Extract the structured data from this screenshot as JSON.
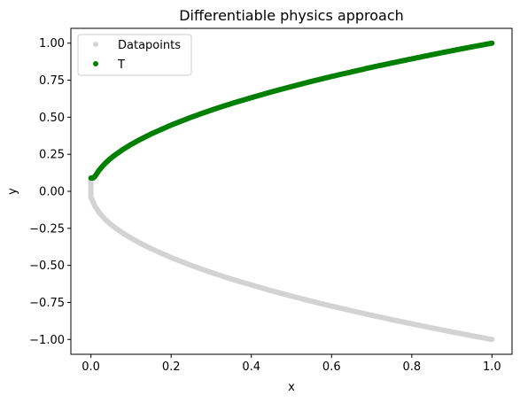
{
  "chart_data": {
    "type": "scatter",
    "title": "Differentiable physics approach",
    "xlabel": "x",
    "ylabel": "y",
    "xlim": [
      -0.05,
      1.05
    ],
    "ylim": [
      -1.1,
      1.1
    ],
    "xticks": [
      0.0,
      0.2,
      0.4,
      0.6,
      0.8,
      1.0
    ],
    "xtick_labels": [
      "0.0",
      "0.2",
      "0.4",
      "0.6",
      "0.8",
      "1.0"
    ],
    "yticks": [
      -1.0,
      -0.75,
      -0.5,
      -0.25,
      0.0,
      0.25,
      0.5,
      0.75,
      1.0
    ],
    "ytick_labels": [
      "−1.00",
      "−0.75",
      "−0.50",
      "−0.25",
      "0.00",
      "0.25",
      "0.50",
      "0.75",
      "1.00"
    ],
    "grid": false,
    "legend_position": "top-left",
    "series": [
      {
        "name": "Datapoints",
        "color": "#d3d3d3",
        "marker": "circle",
        "points": [
          [
            0.0,
            0.08
          ],
          [
            0.0,
            0.05
          ],
          [
            0.0,
            0.0
          ],
          [
            0.0,
            -0.04
          ],
          [
            0.005,
            -0.07
          ],
          [
            0.01,
            -0.1
          ],
          [
            0.02,
            -0.141
          ],
          [
            0.03,
            -0.173
          ],
          [
            0.04,
            -0.2
          ],
          [
            0.05,
            -0.224
          ],
          [
            0.06,
            -0.245
          ],
          [
            0.08,
            -0.283
          ],
          [
            0.1,
            -0.316
          ],
          [
            0.12,
            -0.346
          ],
          [
            0.15,
            -0.387
          ],
          [
            0.2,
            -0.447
          ],
          [
            0.25,
            -0.5
          ],
          [
            0.3,
            -0.548
          ],
          [
            0.35,
            -0.592
          ],
          [
            0.4,
            -0.632
          ],
          [
            0.45,
            -0.671
          ],
          [
            0.5,
            -0.707
          ],
          [
            0.55,
            -0.742
          ],
          [
            0.6,
            -0.775
          ],
          [
            0.65,
            -0.806
          ],
          [
            0.7,
            -0.837
          ],
          [
            0.75,
            -0.866
          ],
          [
            0.8,
            -0.894
          ],
          [
            0.85,
            -0.922
          ],
          [
            0.9,
            -0.949
          ],
          [
            0.95,
            -0.975
          ],
          [
            1.0,
            -1.0
          ]
        ]
      },
      {
        "name": "T",
        "color": "#008000",
        "marker": "circle",
        "points": [
          [
            0.0,
            0.09
          ],
          [
            0.005,
            0.09
          ],
          [
            0.01,
            0.1
          ],
          [
            0.02,
            0.141
          ],
          [
            0.03,
            0.173
          ],
          [
            0.04,
            0.2
          ],
          [
            0.05,
            0.224
          ],
          [
            0.06,
            0.245
          ],
          [
            0.08,
            0.283
          ],
          [
            0.1,
            0.316
          ],
          [
            0.12,
            0.346
          ],
          [
            0.15,
            0.387
          ],
          [
            0.2,
            0.447
          ],
          [
            0.25,
            0.5
          ],
          [
            0.3,
            0.548
          ],
          [
            0.35,
            0.592
          ],
          [
            0.4,
            0.632
          ],
          [
            0.45,
            0.671
          ],
          [
            0.5,
            0.707
          ],
          [
            0.55,
            0.742
          ],
          [
            0.6,
            0.775
          ],
          [
            0.65,
            0.806
          ],
          [
            0.7,
            0.837
          ],
          [
            0.75,
            0.866
          ],
          [
            0.8,
            0.894
          ],
          [
            0.85,
            0.922
          ],
          [
            0.9,
            0.949
          ],
          [
            0.95,
            0.975
          ],
          [
            1.0,
            1.0
          ]
        ]
      }
    ]
  }
}
